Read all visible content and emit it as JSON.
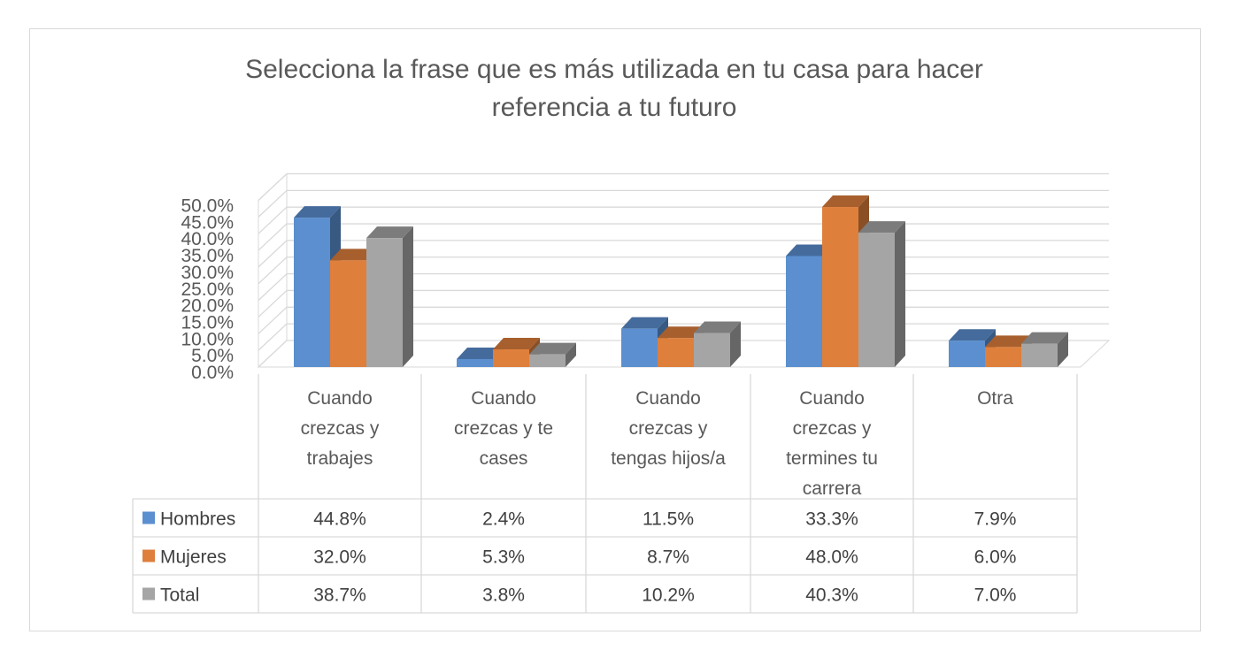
{
  "chart_data": {
    "type": "bar",
    "title": "Selecciona la frase que es más utilizada en tu casa para hacer referencia a tu futuro",
    "title_lines": [
      "Selecciona la frase que es más utilizada en tu casa para hacer",
      "referencia a tu futuro"
    ],
    "categories": [
      "Cuando crezcas y trabajes",
      "Cuando crezcas y te cases",
      "Cuando crezcas y tengas hijos/a",
      "Cuando crezcas y termines tu carrera",
      "Otra"
    ],
    "category_lines": [
      [
        "Cuando",
        "crezcas y",
        "trabajes"
      ],
      [
        "Cuando",
        "crezcas y te",
        "cases"
      ],
      [
        "Cuando",
        "crezcas y",
        "tengas hijos/a"
      ],
      [
        "Cuando",
        "crezcas y",
        "termines tu",
        "carrera"
      ],
      [
        "Otra"
      ]
    ],
    "series": [
      {
        "name": "Hombres",
        "color": "#5b8fd0",
        "values": [
          44.8,
          2.4,
          11.5,
          33.3,
          7.9
        ],
        "labels": [
          "44.8%",
          "2.4%",
          "11.5%",
          "33.3%",
          "7.9%"
        ]
      },
      {
        "name": "Mujeres",
        "color": "#de7f3c",
        "values": [
          32.0,
          5.3,
          8.7,
          48.0,
          6.0
        ],
        "labels": [
          "32.0%",
          "5.3%",
          "8.7%",
          "48.0%",
          "6.0%"
        ]
      },
      {
        "name": "Total",
        "color": "#a5a5a5",
        "values": [
          38.7,
          3.8,
          10.2,
          40.3,
          7.0
        ],
        "labels": [
          "38.7%",
          "3.8%",
          "10.2%",
          "40.3%",
          "7.0%"
        ]
      }
    ],
    "yticks": [
      "0.0%",
      "5.0%",
      "10.0%",
      "15.0%",
      "20.0%",
      "25.0%",
      "30.0%",
      "35.0%",
      "40.0%",
      "45.0%",
      "50.0%"
    ],
    "ylim": [
      0,
      50
    ],
    "style": "3D clustered column with data table and legend keys",
    "grid": true
  }
}
